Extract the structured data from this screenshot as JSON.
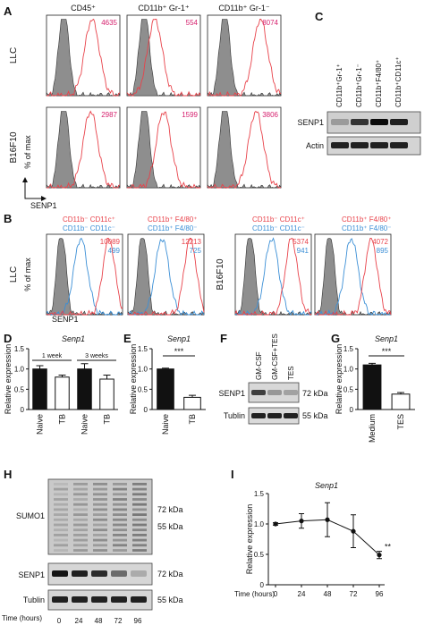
{
  "panel_letters": {
    "A": "A",
    "B": "B",
    "C": "C",
    "D": "D",
    "E": "E",
    "F": "F",
    "G": "G",
    "H": "H",
    "I": "I"
  },
  "colors": {
    "red": "#e8424a",
    "blue": "#3b8fd6",
    "gray": "#8e8e8e",
    "black": "#111111",
    "magenta": "#d6216e"
  },
  "panelA": {
    "columns": [
      "CD45⁺",
      "CD11b⁺ Gr-1⁺",
      "CD11b⁺ Gr-1⁻"
    ],
    "rows": [
      "LLC",
      "B16F10"
    ],
    "values": [
      [
        "4635",
        "554",
        "8074"
      ],
      [
        "2987",
        "1599",
        "3806"
      ]
    ],
    "ylabel": "% of max",
    "xlabel": "SENP1"
  },
  "panelB": {
    "legend": [
      {
        "red": "CD11b⁻ CD11c⁺",
        "blue": "CD11b⁻ CD11c⁻"
      },
      {
        "red": "CD11b⁺ F4/80⁺",
        "blue": "CD11b⁺ F4/80⁻"
      },
      {
        "red": "CD11b⁻ CD11c⁺",
        "blue": "CD11b⁻ CD11c⁻"
      },
      {
        "red": "CD11b⁺ F4/80⁺",
        "blue": "CD11b⁺ F4/80⁻"
      }
    ],
    "values": [
      [
        "10089",
        "499"
      ],
      [
        "12213",
        "725"
      ],
      [
        "5374",
        "941"
      ],
      [
        "4072",
        "895"
      ]
    ],
    "row_left": "LLC",
    "row_right": "B16F10",
    "ylabel": "% of max",
    "xlabel": "SENP1"
  },
  "panelC": {
    "lanes": [
      "CD11b⁺Gr-1⁺",
      "CD11b⁺Gr-1⁻",
      "CD11b⁺F4/80⁺",
      "CD11b⁺CD11c⁺"
    ],
    "bands": [
      "SENP1",
      "Actin"
    ]
  },
  "panelD": {
    "title": "Senp1",
    "groups": [
      "1 week",
      "3 weeks"
    ],
    "categories": [
      "Naive",
      "TB",
      "Naive",
      "TB"
    ],
    "ylabel": "Relative expression",
    "yticks": [
      "0",
      "0.5",
      "1.0",
      "1.5"
    ]
  },
  "panelE": {
    "title": "Senp1",
    "categories": [
      "Naive",
      "TB"
    ],
    "sig": "***",
    "ylabel": "Relative expression",
    "yticks": [
      "0",
      "0.5",
      "1.0",
      "1.5"
    ]
  },
  "panelF": {
    "lanes": [
      "GM-CSF",
      "GM-CSF+TES",
      "TES"
    ],
    "bands": [
      "SENP1",
      "Tublin"
    ],
    "markers": [
      "72 kDa",
      "55 kDa"
    ]
  },
  "panelG": {
    "title": "Senp1",
    "categories": [
      "Medium",
      "TES"
    ],
    "sig": "***",
    "ylabel": "Relative expression",
    "yticks": [
      "0",
      "0.5",
      "1.0",
      "1.5"
    ]
  },
  "panelH": {
    "bands": [
      "SUMO1",
      "SENP1",
      "Tublin"
    ],
    "markers": [
      "72 kDa",
      "55 kDa",
      "72 kDa",
      "55 kDa"
    ],
    "time_label": "Time (hours)",
    "times": [
      "0",
      "24",
      "48",
      "72",
      "96"
    ]
  },
  "panelI": {
    "title": "Senp1",
    "ylabel": "Relative expression",
    "xlabel": "Time (hours)",
    "yticks": [
      "0",
      "0.5",
      "1.0",
      "1.5"
    ],
    "xticks": [
      "0",
      "24",
      "48",
      "72",
      "96"
    ],
    "sig": "**"
  },
  "chart_data": [
    {
      "type": "bar",
      "id": "D",
      "title": "Senp1",
      "categories": [
        "Naive",
        "TB",
        "Naive",
        "TB"
      ],
      "groups": [
        "1 week",
        "1 week",
        "3 weeks",
        "3 weeks"
      ],
      "values": [
        1.0,
        0.8,
        1.0,
        0.75
      ],
      "errors": [
        0.08,
        0.05,
        0.13,
        0.1
      ],
      "fills": [
        "#111111",
        "#ffffff",
        "#111111",
        "#ffffff"
      ],
      "ylabel": "Relative expression",
      "ylim": [
        0,
        1.5
      ]
    },
    {
      "type": "bar",
      "id": "E",
      "title": "Senp1",
      "categories": [
        "Naive",
        "TB"
      ],
      "values": [
        1.0,
        0.3
      ],
      "errors": [
        0.02,
        0.05
      ],
      "fills": [
        "#111111",
        "#ffffff"
      ],
      "ylabel": "Relative expression",
      "ylim": [
        0,
        1.5
      ]
    },
    {
      "type": "bar",
      "id": "G",
      "title": "Senp1",
      "categories": [
        "Medium",
        "TES"
      ],
      "values": [
        1.1,
        0.38
      ],
      "errors": [
        0.04,
        0.04
      ],
      "fills": [
        "#111111",
        "#ffffff"
      ],
      "ylabel": "Relative expression",
      "ylim": [
        0,
        1.5
      ]
    },
    {
      "type": "line",
      "id": "I",
      "title": "Senp1",
      "x": [
        0,
        24,
        48,
        72,
        96
      ],
      "values": [
        1.0,
        1.05,
        1.07,
        0.88,
        0.49
      ],
      "errors": [
        0.02,
        0.12,
        0.28,
        0.27,
        0.06
      ],
      "xlabel": "Time (hours)",
      "ylabel": "Relative expression",
      "ylim": [
        0,
        1.5
      ]
    }
  ]
}
